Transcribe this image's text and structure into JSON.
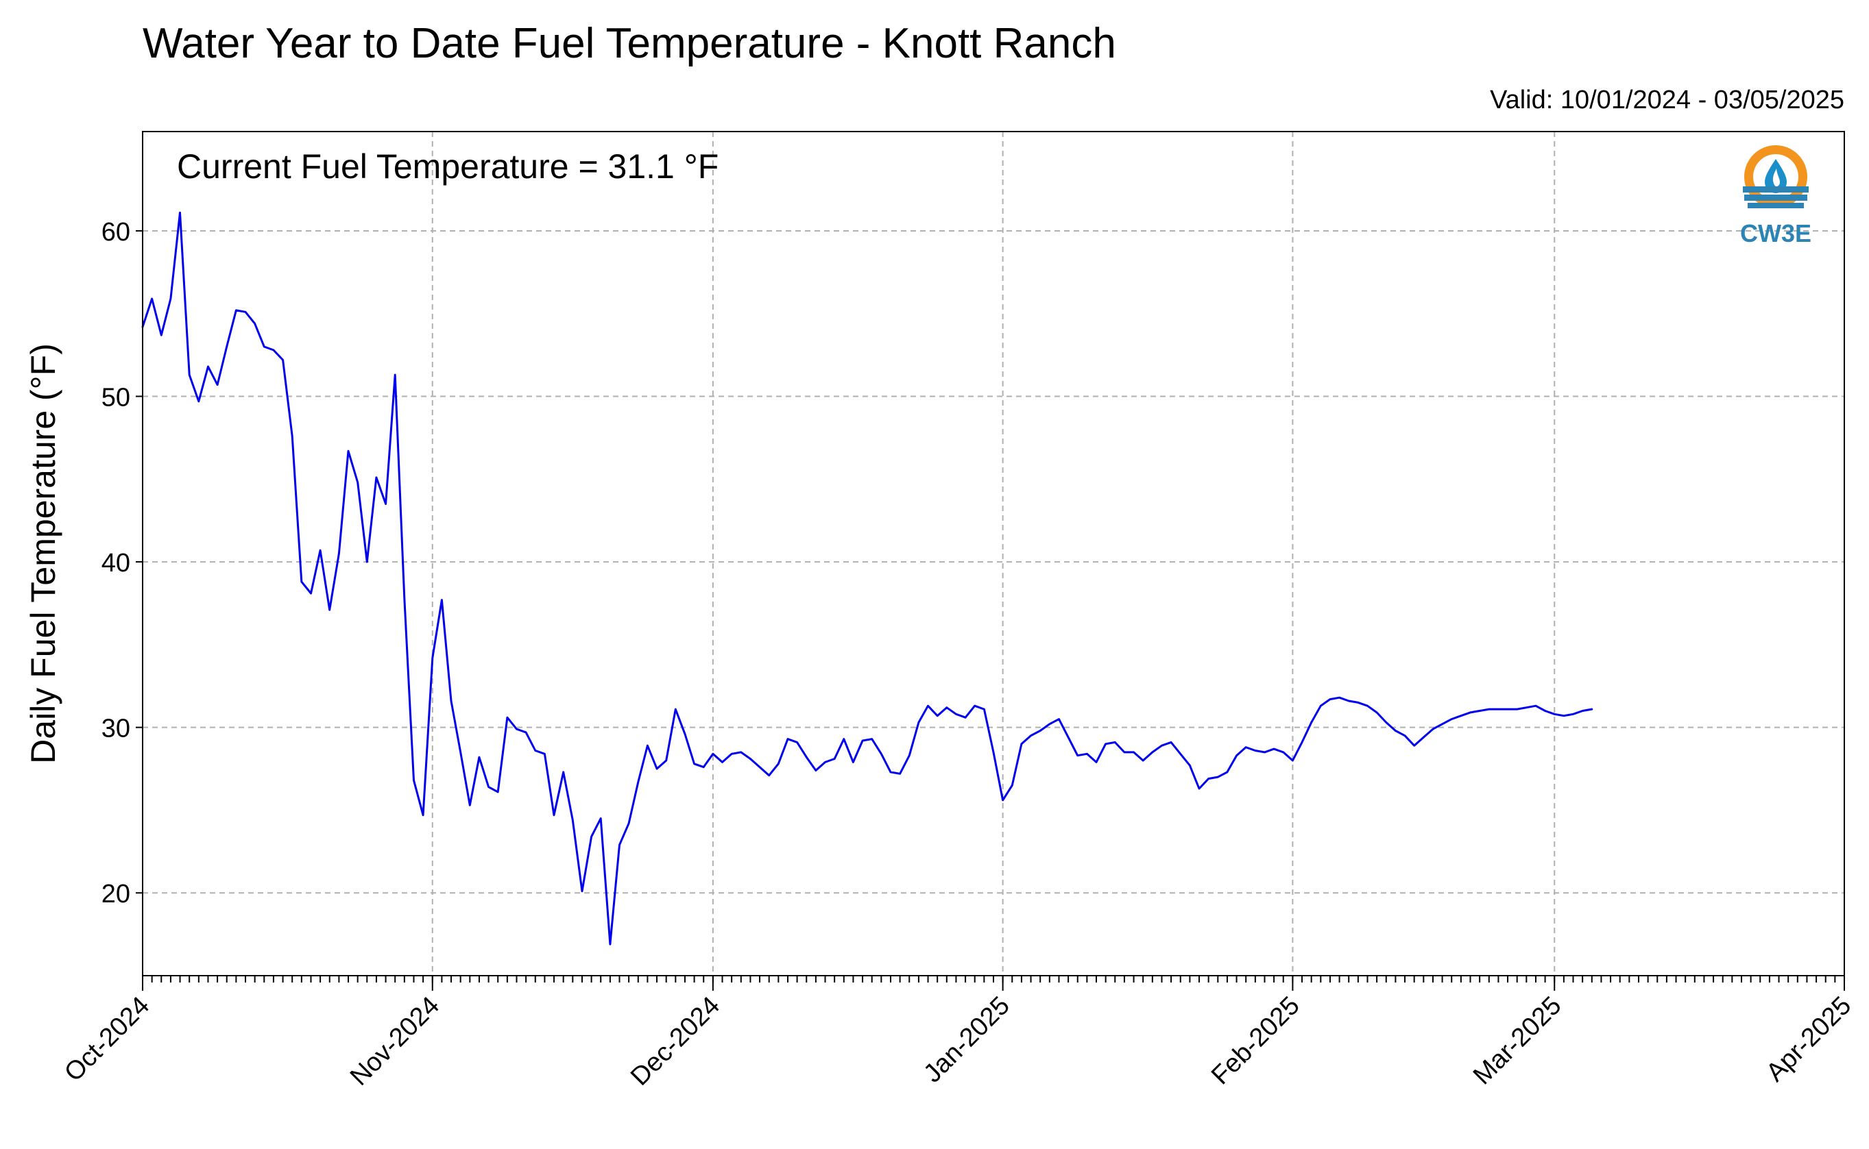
{
  "chart_data": {
    "type": "line",
    "title": "Water Year to Date Fuel Temperature - Knott Ranch",
    "subtitle": "Valid: 10/01/2024 - 03/05/2025",
    "annotation": "Current Fuel Temperature = 31.1 °F",
    "xlabel": "",
    "ylabel": "Daily Fuel Temperature (°F)",
    "xlim": [
      "2024-10-01",
      "2025-04-01"
    ],
    "ylim": [
      15,
      66
    ],
    "x_ticks": [
      {
        "date": "2024-10-01",
        "label": "Oct-2024"
      },
      {
        "date": "2024-11-01",
        "label": "Nov-2024"
      },
      {
        "date": "2024-12-01",
        "label": "Dec-2024"
      },
      {
        "date": "2025-01-01",
        "label": "Jan-2025"
      },
      {
        "date": "2025-02-01",
        "label": "Feb-2025"
      },
      {
        "date": "2025-03-01",
        "label": "Mar-2025"
      },
      {
        "date": "2025-04-01",
        "label": "Apr-2025"
      }
    ],
    "y_ticks": [
      20,
      30,
      40,
      50,
      60
    ],
    "grid": true,
    "legend": "none",
    "logo_text": "CW3E",
    "series": [
      {
        "color": "#0000ee",
        "x": [
          "2024-10-01",
          "2024-10-02",
          "2024-10-03",
          "2024-10-04",
          "2024-10-05",
          "2024-10-06",
          "2024-10-07",
          "2024-10-08",
          "2024-10-09",
          "2024-10-10",
          "2024-10-11",
          "2024-10-12",
          "2024-10-13",
          "2024-10-14",
          "2024-10-15",
          "2024-10-16",
          "2024-10-17",
          "2024-10-18",
          "2024-10-19",
          "2024-10-20",
          "2024-10-21",
          "2024-10-22",
          "2024-10-23",
          "2024-10-24",
          "2024-10-25",
          "2024-10-26",
          "2024-10-27",
          "2024-10-28",
          "2024-10-29",
          "2024-10-30",
          "2024-10-31",
          "2024-11-01",
          "2024-11-02",
          "2024-11-03",
          "2024-11-04",
          "2024-11-05",
          "2024-11-06",
          "2024-11-07",
          "2024-11-08",
          "2024-11-09",
          "2024-11-10",
          "2024-11-11",
          "2024-11-12",
          "2024-11-13",
          "2024-11-14",
          "2024-11-15",
          "2024-11-16",
          "2024-11-17",
          "2024-11-18",
          "2024-11-19",
          "2024-11-20",
          "2024-11-21",
          "2024-11-22",
          "2024-11-23",
          "2024-11-24",
          "2024-11-25",
          "2024-11-26",
          "2024-11-27",
          "2024-11-28",
          "2024-11-29",
          "2024-11-30",
          "2024-12-01",
          "2024-12-02",
          "2024-12-03",
          "2024-12-04",
          "2024-12-05",
          "2024-12-06",
          "2024-12-07",
          "2024-12-08",
          "2024-12-09",
          "2024-12-10",
          "2024-12-11",
          "2024-12-12",
          "2024-12-13",
          "2024-12-14",
          "2024-12-15",
          "2024-12-16",
          "2024-12-17",
          "2024-12-18",
          "2024-12-19",
          "2024-12-20",
          "2024-12-21",
          "2024-12-22",
          "2024-12-23",
          "2024-12-24",
          "2024-12-25",
          "2024-12-26",
          "2024-12-27",
          "2024-12-28",
          "2024-12-29",
          "2024-12-30",
          "2024-12-31",
          "2025-01-01",
          "2025-01-02",
          "2025-01-03",
          "2025-01-04",
          "2025-01-05",
          "2025-01-06",
          "2025-01-07",
          "2025-01-08",
          "2025-01-09",
          "2025-01-10",
          "2025-01-11",
          "2025-01-12",
          "2025-01-13",
          "2025-01-14",
          "2025-01-15",
          "2025-01-16",
          "2025-01-17",
          "2025-01-18",
          "2025-01-19",
          "2025-01-20",
          "2025-01-21",
          "2025-01-22",
          "2025-01-23",
          "2025-01-24",
          "2025-01-25",
          "2025-01-26",
          "2025-01-27",
          "2025-01-28",
          "2025-01-29",
          "2025-01-30",
          "2025-01-31",
          "2025-02-01",
          "2025-02-02",
          "2025-02-03",
          "2025-02-04",
          "2025-02-05",
          "2025-02-06",
          "2025-02-07",
          "2025-02-08",
          "2025-02-09",
          "2025-02-10",
          "2025-02-11",
          "2025-02-12",
          "2025-02-13",
          "2025-02-14",
          "2025-02-15",
          "2025-02-16",
          "2025-02-17",
          "2025-02-18",
          "2025-02-19",
          "2025-02-20",
          "2025-02-21",
          "2025-02-22",
          "2025-02-23",
          "2025-02-24",
          "2025-02-25",
          "2025-02-26",
          "2025-02-27",
          "2025-02-28",
          "2025-03-01",
          "2025-03-02",
          "2025-03-03",
          "2025-03-04",
          "2025-03-05"
        ],
        "values": [
          54.2,
          55.9,
          53.7,
          55.9,
          61.1,
          51.3,
          49.7,
          51.8,
          50.7,
          53.0,
          55.2,
          55.1,
          54.4,
          53.0,
          52.8,
          52.2,
          47.6,
          38.8,
          38.1,
          40.7,
          37.1,
          40.5,
          46.7,
          44.8,
          40.0,
          45.1,
          43.5,
          51.3,
          37.8,
          26.8,
          24.7,
          34.2,
          37.7,
          31.6,
          28.5,
          25.3,
          28.2,
          26.4,
          26.1,
          30.6,
          29.9,
          29.7,
          28.6,
          28.4,
          24.7,
          27.3,
          24.4,
          20.1,
          23.4,
          24.5,
          16.9,
          22.9,
          24.2,
          26.7,
          28.9,
          27.5,
          28.0,
          31.1,
          29.6,
          27.8,
          27.6,
          28.4,
          27.9,
          28.4,
          28.5,
          28.1,
          27.6,
          27.1,
          27.8,
          29.3,
          29.1,
          28.2,
          27.4,
          27.9,
          28.1,
          29.3,
          27.9,
          29.2,
          29.3,
          28.4,
          27.3,
          27.2,
          28.3,
          30.3,
          31.3,
          30.7,
          31.2,
          30.8,
          30.6,
          31.3,
          31.1,
          28.5,
          25.6,
          26.5,
          29.0,
          29.5,
          29.8,
          30.2,
          30.5,
          29.4,
          28.3,
          28.4,
          27.9,
          29.0,
          29.1,
          28.5,
          28.5,
          28.0,
          28.5,
          28.9,
          29.1,
          28.4,
          27.7,
          26.3,
          26.9,
          27.0,
          27.3,
          28.3,
          28.8,
          28.6,
          28.5,
          28.7,
          28.5,
          28.0,
          29.1,
          30.3,
          31.3,
          31.7,
          31.8,
          31.6,
          31.5,
          31.3,
          30.9,
          30.3,
          29.8,
          29.5,
          28.9,
          29.4,
          29.9,
          30.2,
          30.5,
          30.7,
          30.9,
          31.0,
          31.1,
          31.1,
          31.1,
          31.1,
          31.2,
          31.3,
          31.0,
          30.8,
          30.7,
          30.8,
          31.0,
          31.1
        ]
      }
    ]
  }
}
